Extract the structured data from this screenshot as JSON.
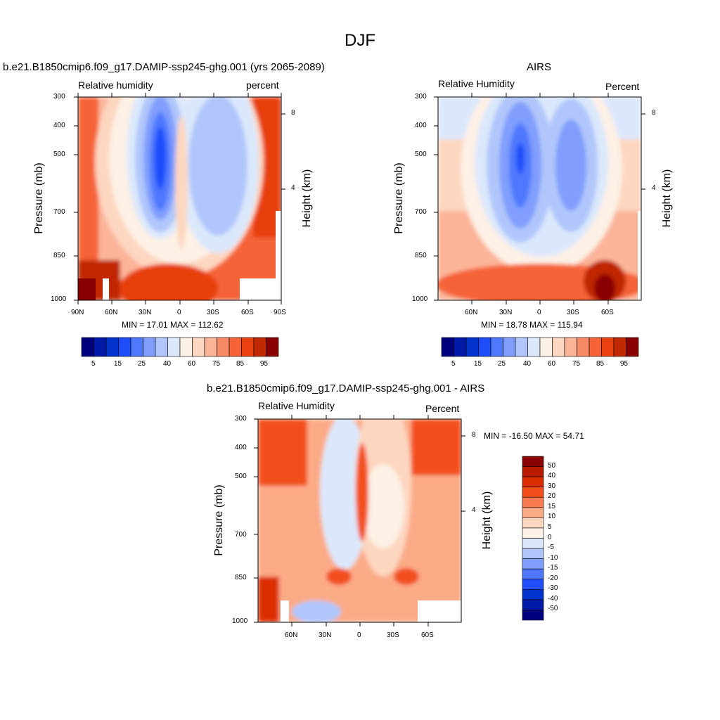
{
  "title": "DJF",
  "colors": {
    "abs_scale": [
      "#00007f",
      "#0019a6",
      "#0032cc",
      "#1f4dfa",
      "#4f78ff",
      "#7f9efd",
      "#b0c6fb",
      "#dbe8fb",
      "#fdf0e5",
      "#fdd6c0",
      "#fbb498",
      "#f98a68",
      "#f56337",
      "#e8410f",
      "#c02703",
      "#8a0000"
    ],
    "diff_scale": [
      "#8a0000",
      "#b81a00",
      "#dc2d02",
      "#f24f1c",
      "#f87a50",
      "#fbaa86",
      "#fdd6c0",
      "#fdf0e5",
      "#dbe8fb",
      "#b0c6fb",
      "#7f9efd",
      "#4f78ff",
      "#1f4dfa",
      "#0032cc",
      "#0019a6",
      "#00007f"
    ]
  },
  "panels": {
    "model": {
      "title": "b.e21.B1850cmip6.f09_g17.DAMIP-ssp245-ghg.001 (yrs 2065-2089)",
      "left_label": "Relative humidity",
      "right_label": "percent",
      "ylabel": "Pressure (mb)",
      "y2label": "Height (km)",
      "yticks": [
        "300",
        "400",
        "500",
        "700",
        "850",
        "1000"
      ],
      "xticks": [
        "90N",
        "60N",
        "30N",
        "0",
        "30S",
        "60S",
        "90S"
      ],
      "y2ticks": [
        "8",
        "4"
      ],
      "min_max": "MIN =  17.01  MAX = 112.62",
      "colorbar_labels": [
        "5",
        "15",
        "25",
        "40",
        "60",
        "75",
        "85",
        "95"
      ]
    },
    "obs": {
      "title": "AIRS",
      "left_label": "Relative Humidity",
      "right_label": "Percent",
      "ylabel": "Pressure (mb)",
      "y2label": "Height (km)",
      "yticks": [
        "300",
        "400",
        "500",
        "700",
        "850",
        "1000"
      ],
      "xticks": [
        "60N",
        "30N",
        "0",
        "30S",
        "60S"
      ],
      "y2ticks": [
        "8",
        "4"
      ],
      "min_max": "MIN =  18.78  MAX = 115.94",
      "colorbar_labels": [
        "5",
        "15",
        "25",
        "40",
        "60",
        "75",
        "85",
        "95"
      ]
    },
    "diff": {
      "title": "b.e21.B1850cmip6.f09_g17.DAMIP-ssp245-ghg.001 - AIRS",
      "left_label": "Relative Humidity",
      "right_label": "Percent",
      "ylabel": "Pressure (mb)",
      "y2label": "Height (km)",
      "yticks": [
        "300",
        "400",
        "500",
        "700",
        "850",
        "1000"
      ],
      "xticks": [
        "60N",
        "30N",
        "0",
        "30S",
        "60S"
      ],
      "y2ticks": [
        "8",
        "4"
      ],
      "min_max": "MIN = -16.50  MAX =  54.71",
      "colorbar_labels": [
        "50",
        "40",
        "30",
        "20",
        "15",
        "10",
        "5",
        "0",
        "-5",
        "-10",
        "-15",
        "-20",
        "-30",
        "-40",
        "-50"
      ]
    }
  },
  "chart_data": [
    {
      "type": "heatmap",
      "title": "b.e21.B1850cmip6.f09_g17.DAMIP-ssp245-ghg.001 (yrs 2065-2089)",
      "variable": "Relative humidity",
      "units": "percent",
      "x_range": [
        "90N",
        "90S"
      ],
      "y_range_mb": [
        1000,
        300
      ],
      "ylabel": "Pressure (mb)",
      "y2label": "Height (km)",
      "min": 17.01,
      "max": 112.62,
      "levels": [
        5,
        10,
        15,
        20,
        25,
        30,
        40,
        50,
        60,
        70,
        75,
        80,
        85,
        90,
        95
      ],
      "features": [
        "dry minimum ~15-20% near 20N 450mb",
        "dry region ~30% near 25S 450mb",
        "moist >85% near surface and at high latitudes"
      ]
    },
    {
      "type": "heatmap",
      "title": "AIRS",
      "variable": "Relative Humidity",
      "units": "Percent",
      "x_range": [
        "90N",
        "90S"
      ],
      "y_range_mb": [
        1000,
        300
      ],
      "min": 18.78,
      "max": 115.94,
      "levels": [
        5,
        10,
        15,
        20,
        25,
        30,
        40,
        50,
        60,
        70,
        75,
        80,
        85,
        90,
        95
      ]
    },
    {
      "type": "heatmap",
      "title": "b.e21.B1850cmip6.f09_g17.DAMIP-ssp245-ghg.001 - AIRS",
      "variable": "Relative Humidity",
      "units": "Percent",
      "x_range": [
        "90N",
        "90S"
      ],
      "y_range_mb": [
        1000,
        300
      ],
      "min": -16.5,
      "max": 54.71,
      "levels": [
        -50,
        -40,
        -30,
        -20,
        -15,
        -10,
        -5,
        0,
        5,
        10,
        15,
        20,
        30,
        40,
        50
      ]
    }
  ]
}
